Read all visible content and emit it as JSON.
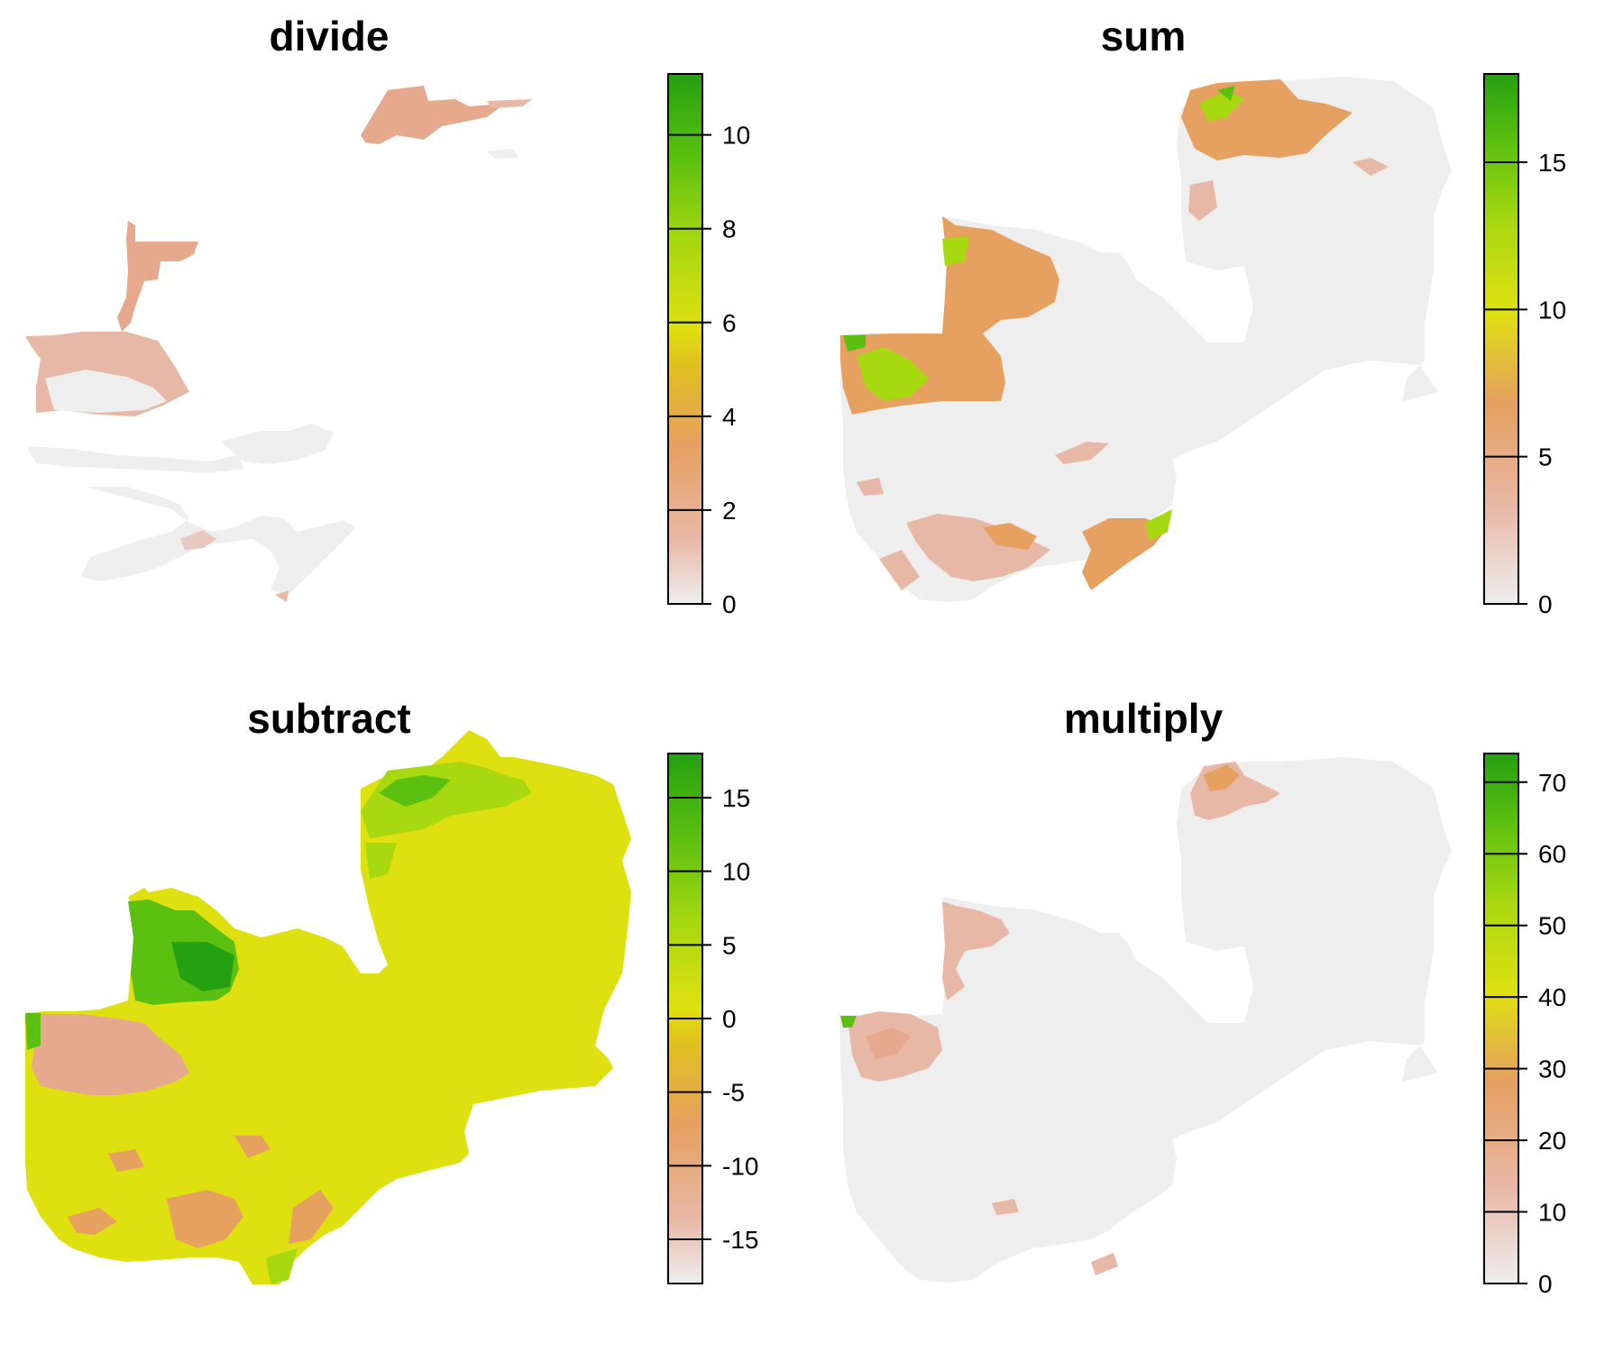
{
  "panels": [
    {
      "title": "divide",
      "legend": {
        "max": 11.3,
        "ticks": [
          0,
          2,
          4,
          6,
          8,
          10
        ],
        "tick_labels": [
          "0",
          "2",
          "4",
          "6",
          "8",
          "10"
        ]
      }
    },
    {
      "title": "sum",
      "legend": {
        "max": 18,
        "ticks": [
          0,
          5,
          10,
          15
        ],
        "tick_labels": [
          "0",
          "5",
          "10",
          "15"
        ]
      }
    },
    {
      "title": "subtract",
      "legend": {
        "min": -18,
        "max": 18,
        "ticks": [
          -15,
          -10,
          -5,
          0,
          5,
          10,
          15
        ],
        "tick_labels": [
          "-15",
          "-10",
          "-5",
          "0",
          "5",
          "10",
          "15"
        ]
      }
    },
    {
      "title": "multiply",
      "legend": {
        "max": 74,
        "ticks": [
          0,
          10,
          20,
          30,
          40,
          50,
          60,
          70
        ],
        "tick_labels": [
          "0",
          "10",
          "20",
          "30",
          "40",
          "50",
          "60",
          "70"
        ]
      }
    }
  ],
  "palette": [
    "#eeeeee",
    "#e8b8a6",
    "#e6a060",
    "#e0c020",
    "#dfe010",
    "#a8d810",
    "#5cc010",
    "#24a010"
  ],
  "colors": {
    "no_data_gray": "#eeeeee",
    "low": "#e8b8a6",
    "mid": "#e6a060",
    "zero_yellow": "#dfe010",
    "high_green": "#24a010"
  }
}
